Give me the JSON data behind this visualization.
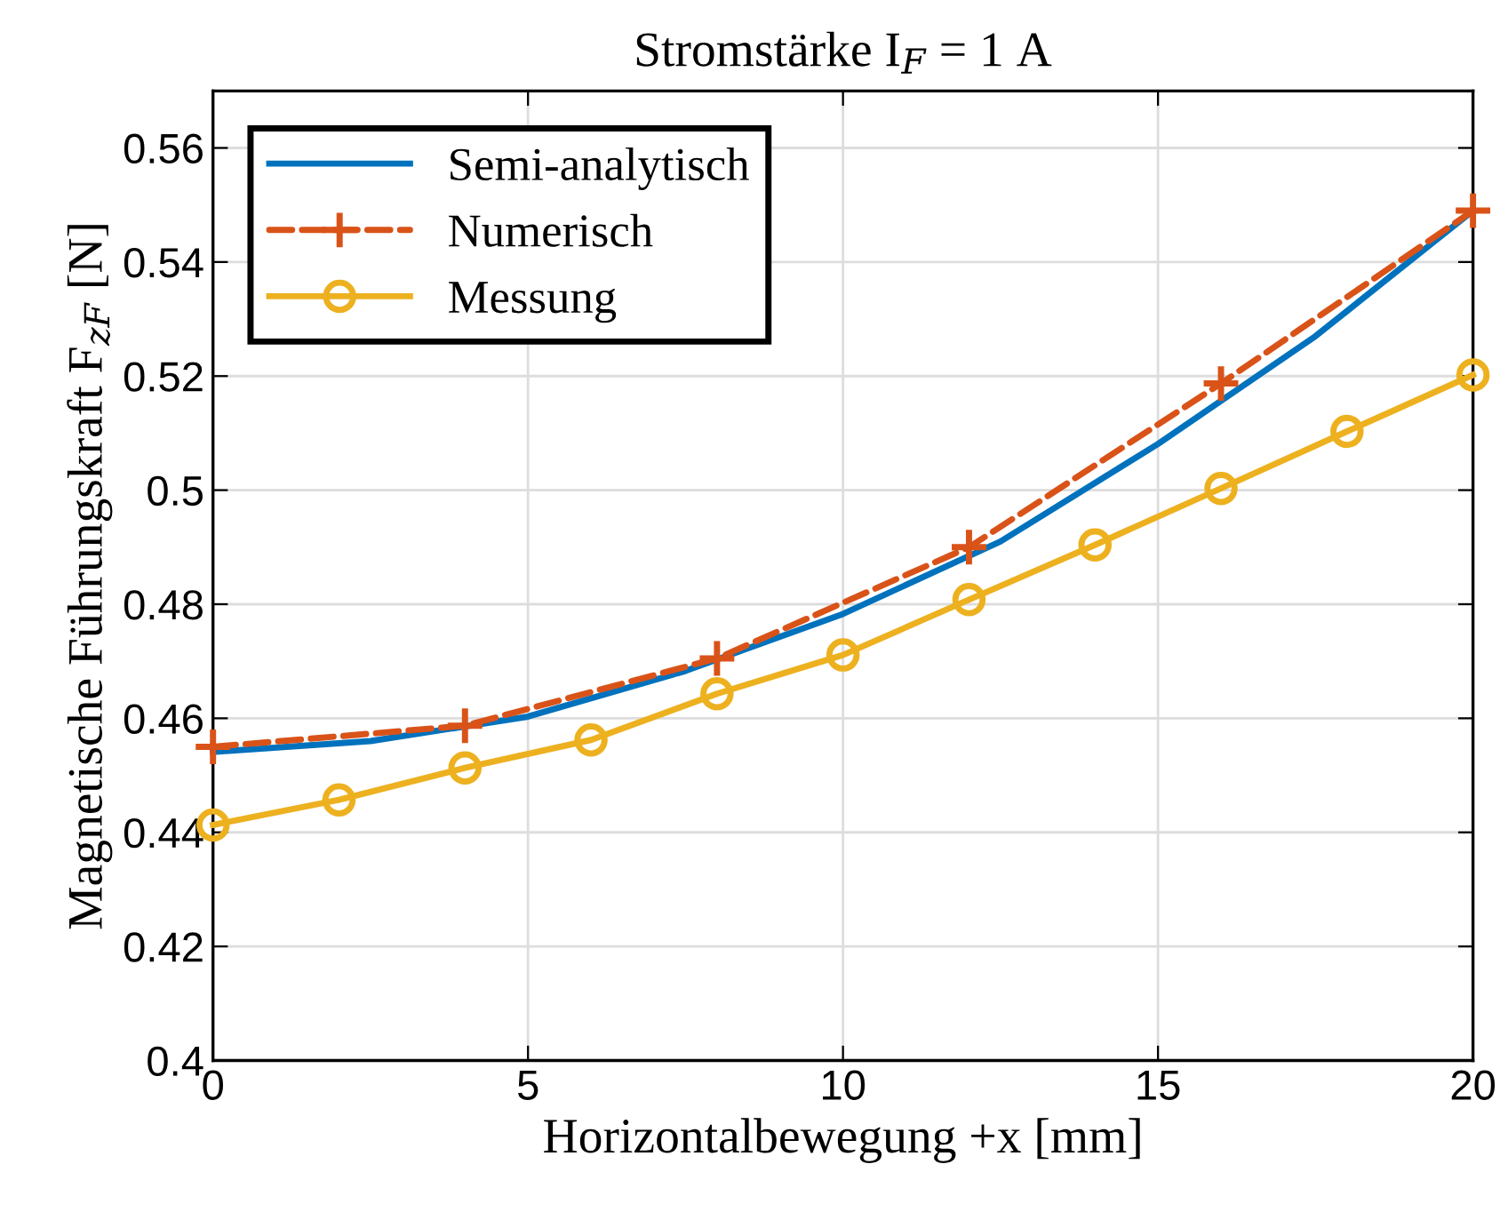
{
  "chart_data": {
    "type": "line",
    "title": "Stromstärke I$_{F}$ = 1 A",
    "xlabel": "Horizontalbewegung +x [mm]",
    "ylabel": "Magnetische Führungskraft F$_{zF}$ [N]",
    "xlim": [
      0,
      20
    ],
    "ylim": [
      0.4,
      0.57
    ],
    "xticks": [
      0,
      5,
      10,
      15,
      20
    ],
    "yticks": [
      0.4,
      0.42,
      0.44,
      0.46,
      0.48,
      0.5,
      0.52,
      0.54,
      0.56
    ],
    "grid": true,
    "legend": "top left",
    "series": [
      {
        "name": "Semi-analytisch",
        "color": "#0072bd",
        "x": [
          0,
          2.5,
          5,
          7.5,
          10,
          12.5,
          15,
          17.5,
          20
        ],
        "values": [
          0.4541,
          0.456,
          0.4603,
          0.4683,
          0.4783,
          0.491,
          0.5081,
          0.527,
          0.549
        ],
        "marker": "none",
        "line_style": "solid"
      },
      {
        "name": "Numerisch",
        "color": "#d95319",
        "x": [
          0,
          4,
          8,
          12,
          16,
          20
        ],
        "values": [
          0.455,
          0.4587,
          0.4705,
          0.49,
          0.5187,
          0.549
        ],
        "marker": "cross",
        "line_style": "dashed"
      },
      {
        "name": "Messung",
        "color": "#edb120",
        "x": [
          0,
          2,
          4,
          6,
          8,
          10,
          12,
          14,
          16,
          18,
          20
        ],
        "values": [
          0.4413,
          0.4457,
          0.4513,
          0.4562,
          0.4643,
          0.4711,
          0.4808,
          0.4904,
          0.5003,
          0.5103,
          0.5202
        ],
        "marker": "circle",
        "line_style": "solid"
      }
    ]
  }
}
